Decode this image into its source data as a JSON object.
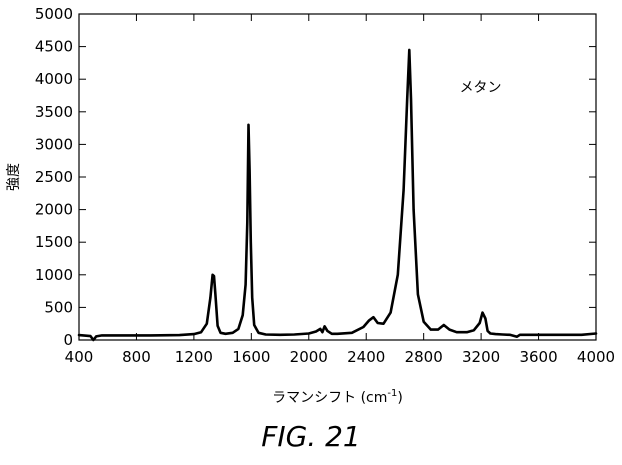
{
  "figure_caption": "FIG. 21",
  "chart_data": {
    "type": "line",
    "title": "",
    "xlabel_main": "ラマンシフト (cm",
    "xlabel_sup": "-1",
    "xlabel_tail": ")",
    "ylabel": "強度",
    "xlim": [
      400,
      4000
    ],
    "ylim": [
      0,
      5000
    ],
    "xticks": [
      400,
      800,
      1200,
      1600,
      2000,
      2400,
      2800,
      3200,
      3600,
      4000
    ],
    "yticks": [
      0,
      500,
      1000,
      1500,
      2000,
      2500,
      3000,
      3500,
      4000,
      4500,
      5000
    ],
    "annotation": {
      "text": "メタン",
      "x": 3050,
      "y": 3800
    },
    "grid": false,
    "legend": "none",
    "series": [
      {
        "color": "#000000",
        "x": [
          400,
          480,
          500,
          520,
          560,
          700,
          900,
          1100,
          1200,
          1250,
          1290,
          1315,
          1330,
          1340,
          1350,
          1365,
          1385,
          1420,
          1470,
          1510,
          1540,
          1560,
          1572,
          1580,
          1588,
          1596,
          1606,
          1620,
          1650,
          1700,
          1800,
          1900,
          2000,
          2050,
          2080,
          2095,
          2110,
          2130,
          2160,
          2200,
          2300,
          2380,
          2420,
          2450,
          2480,
          2520,
          2570,
          2620,
          2660,
          2685,
          2700,
          2712,
          2730,
          2760,
          2800,
          2850,
          2900,
          2940,
          2980,
          3030,
          3100,
          3150,
          3190,
          3210,
          3230,
          3245,
          3265,
          3300,
          3350,
          3400,
          3450,
          3470,
          3500,
          3600,
          3700,
          3800,
          3900,
          4000
        ],
        "y": [
          75,
          60,
          0,
          55,
          70,
          70,
          70,
          75,
          90,
          120,
          250,
          650,
          1000,
          980,
          700,
          220,
          110,
          95,
          110,
          170,
          380,
          850,
          1800,
          3300,
          2600,
          1500,
          650,
          230,
          110,
          85,
          80,
          85,
          100,
          130,
          170,
          120,
          210,
          140,
          95,
          95,
          110,
          200,
          300,
          350,
          260,
          250,
          420,
          1000,
          2300,
          3700,
          4450,
          3700,
          2000,
          700,
          280,
          160,
          160,
          230,
          160,
          120,
          120,
          150,
          260,
          420,
          330,
          140,
          100,
          90,
          85,
          80,
          50,
          80,
          80,
          80,
          80,
          80,
          80,
          100
        ]
      }
    ]
  }
}
